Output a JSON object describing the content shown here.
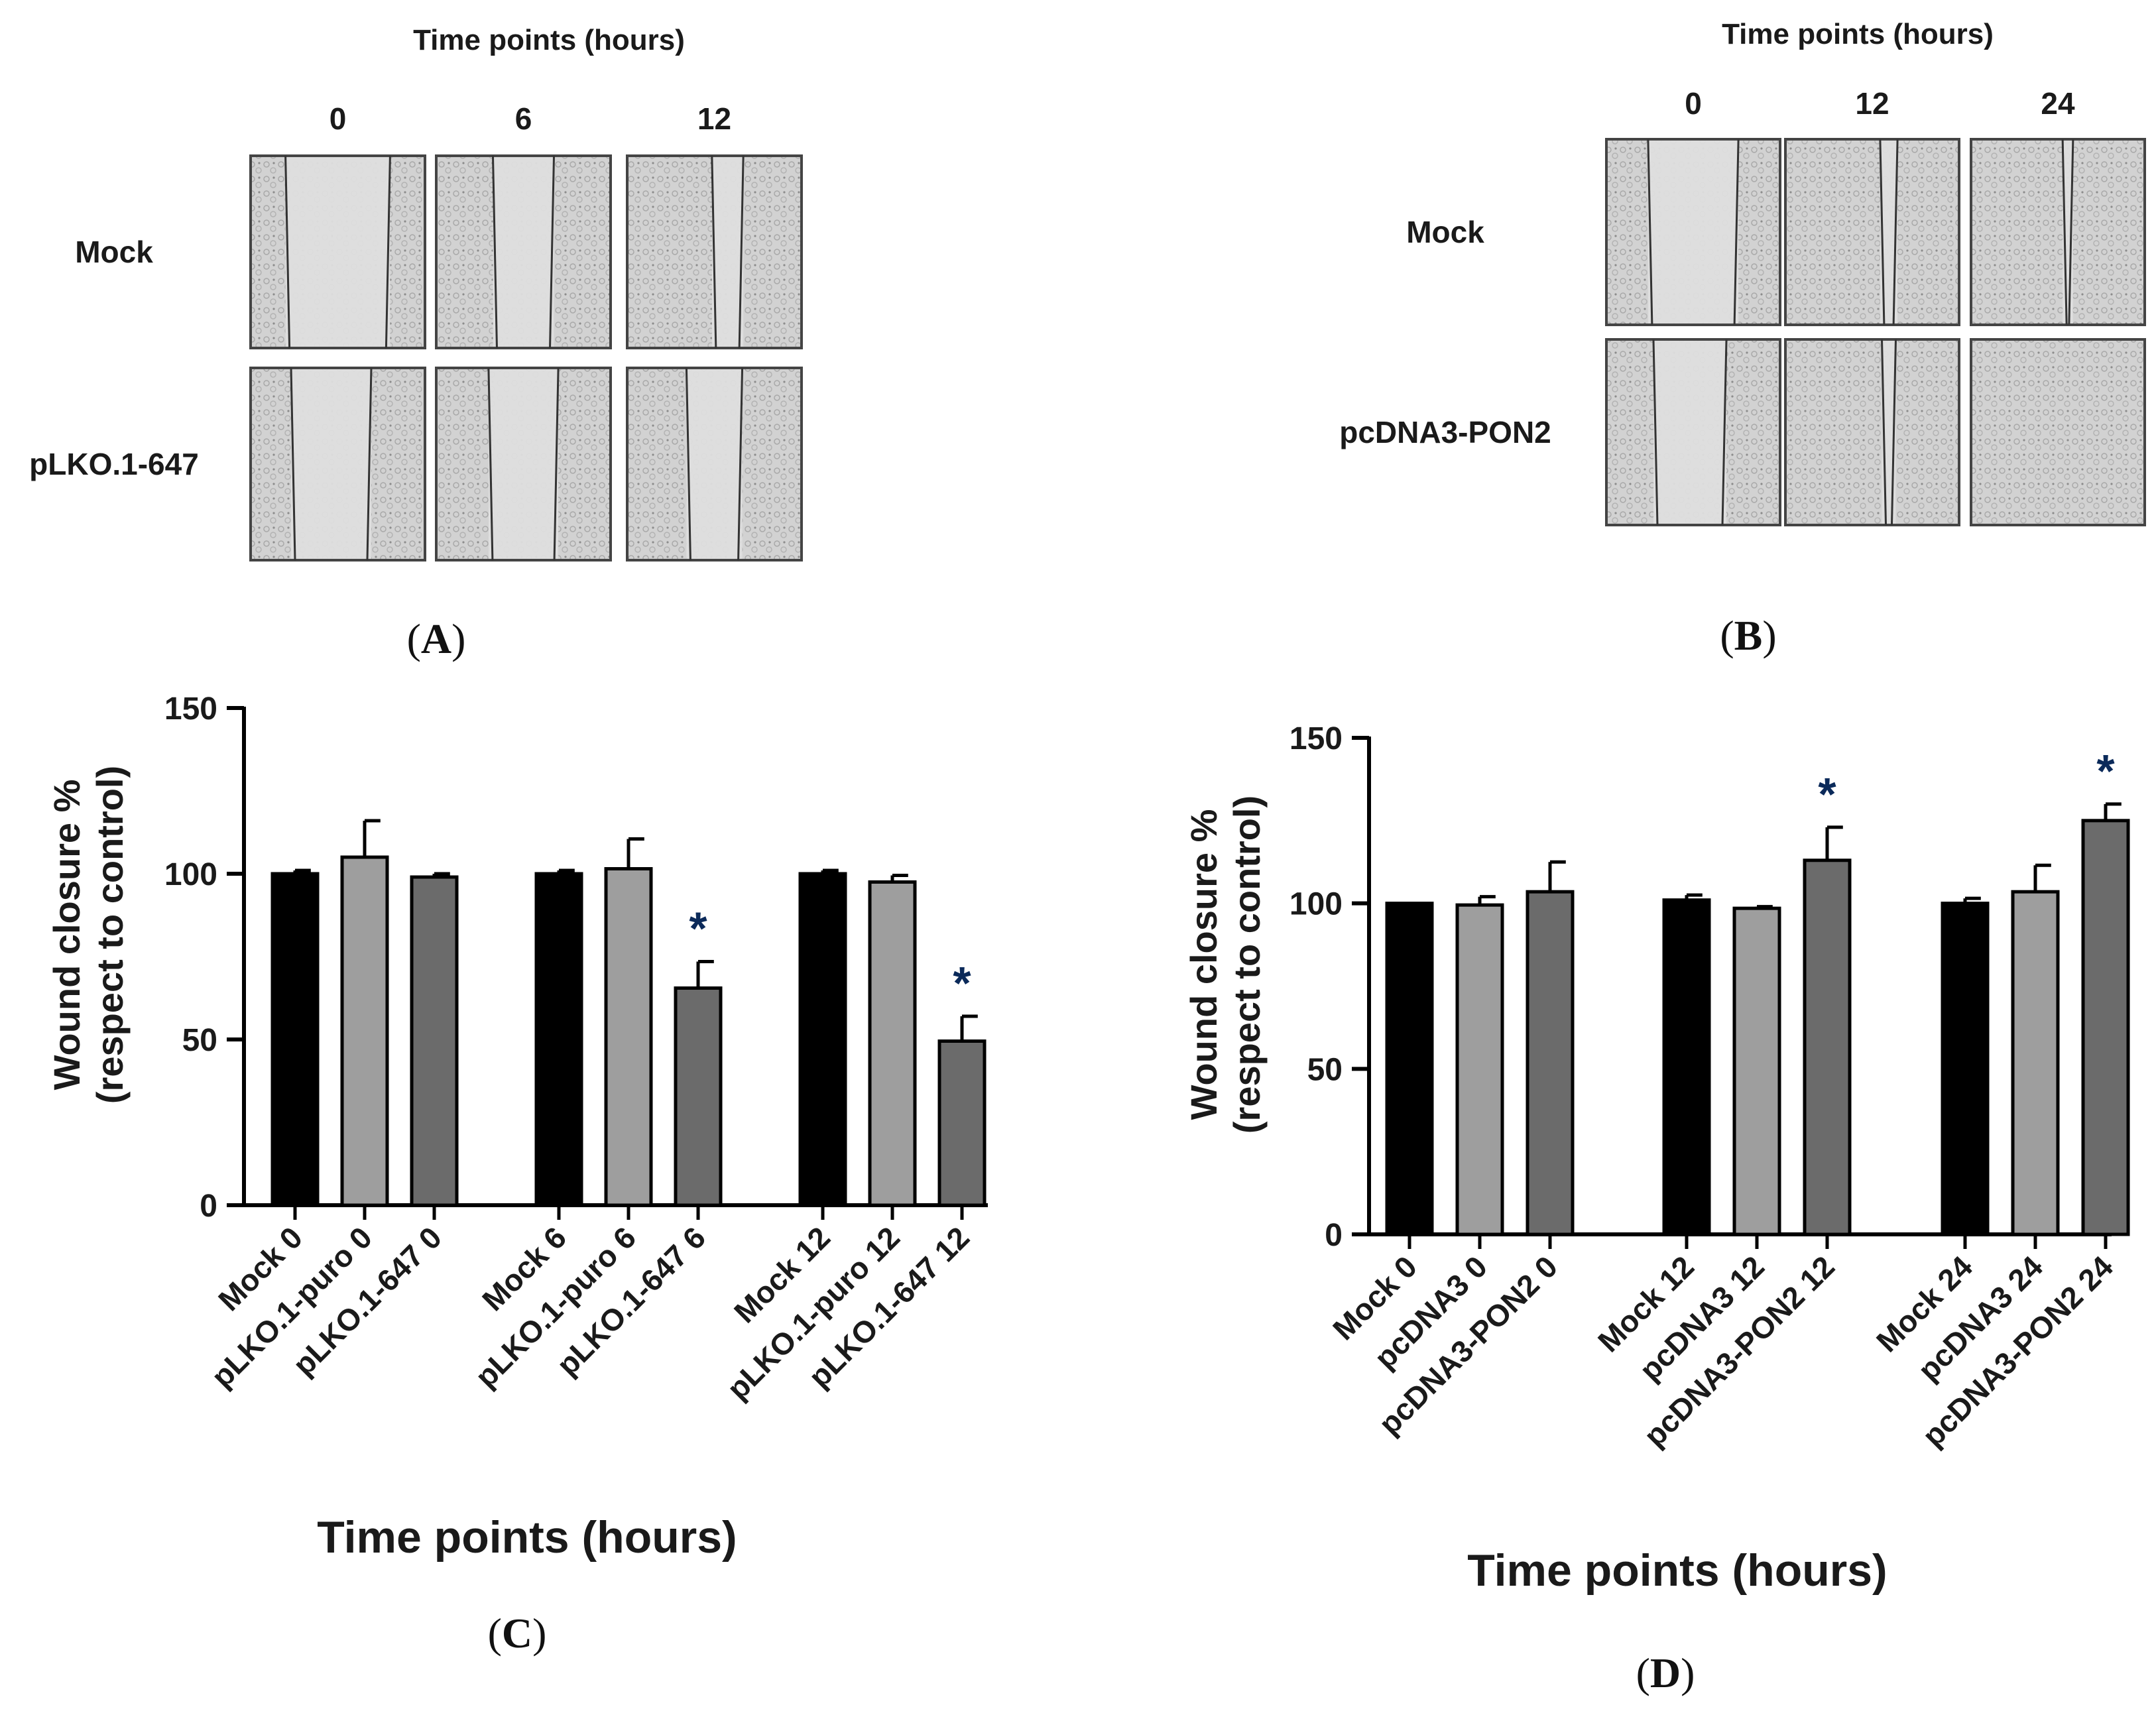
{
  "colors": {
    "mock": "#000000",
    "control": "#9e9e9e",
    "treated": "#6b6b6b",
    "asterisk": "#0b2a5a",
    "micrograph_bg": "#d3d3d3",
    "micrograph_gap": "#dedede"
  },
  "panel_a": {
    "label_open": "(",
    "letter": "A",
    "label_close": ")",
    "header": "Time points (hours)",
    "columns": [
      "0",
      "6",
      "12"
    ],
    "rows": [
      "Mock",
      "pLKO.1-647"
    ],
    "wound_width_fraction": [
      [
        0.6,
        0.35,
        0.18
      ],
      [
        0.46,
        0.4,
        0.32
      ]
    ]
  },
  "panel_b": {
    "label_open": "(",
    "letter": "B",
    "label_close": ")",
    "header": "Time points (hours)",
    "columns": [
      "0",
      "12",
      "24"
    ],
    "rows": [
      "Mock",
      "pcDNA3-PON2"
    ],
    "wound_width_fraction": [
      [
        0.52,
        0.1,
        0.06
      ],
      [
        0.42,
        0.08,
        0.0
      ]
    ]
  },
  "chart_data": [
    {
      "type": "bar",
      "panel": "C",
      "label_open": "(",
      "letter": "C",
      "label_close": ")",
      "xlabel": "Time points (hours)",
      "ylabel_line1": "Wound closure %",
      "ylabel_line2": "(respect to control)",
      "ylim": [
        0,
        150
      ],
      "yticks": [
        "0",
        "50",
        "100",
        "150"
      ],
      "groups": [
        [
          "Mock 0",
          "pLKO.1-puro 0",
          "pLKO.1-647 0"
        ],
        [
          "Mock 6",
          "pLKO.1-puro 6",
          "pLKO.1-647 6"
        ],
        [
          "Mock 12",
          "pLKO.1-puro 12",
          "pLKO.1-647 12"
        ]
      ],
      "values": [
        [
          100,
          105,
          99
        ],
        [
          100,
          101.5,
          65.5
        ],
        [
          100,
          97.5,
          49.5
        ]
      ],
      "errors": [
        [
          1,
          11,
          1
        ],
        [
          1,
          9,
          8
        ],
        [
          1,
          2,
          7.5
        ]
      ],
      "significance": [
        [
          "",
          "",
          ""
        ],
        [
          "",
          "",
          "*"
        ],
        [
          "",
          "",
          "*"
        ]
      ]
    },
    {
      "type": "bar",
      "panel": "D",
      "label_open": "(",
      "letter": "D",
      "label_close": ")",
      "xlabel": "Time points (hours)",
      "ylabel_line1": "Wound closure %",
      "ylabel_line2": "(respect to control)",
      "ylim": [
        0,
        150
      ],
      "yticks": [
        "0",
        "50",
        "100",
        "150"
      ],
      "groups": [
        [
          "Mock 0",
          "pcDNA3 0",
          "pcDNA3-PON2 0"
        ],
        [
          "Mock 12",
          "pcDNA3 12",
          "pcDNA3-PON2 12"
        ],
        [
          "Mock 24",
          "pcDNA3 24",
          "pcDNA3-PON2 24"
        ]
      ],
      "values": [
        [
          100,
          99.5,
          103.5
        ],
        [
          101,
          98.5,
          113
        ],
        [
          100,
          103.5,
          125
        ]
      ],
      "errors": [
        [
          0,
          2.5,
          9
        ],
        [
          1.5,
          0.5,
          10
        ],
        [
          1.5,
          8,
          5
        ]
      ],
      "significance": [
        [
          "",
          "",
          ""
        ],
        [
          "",
          "",
          "*"
        ],
        [
          "",
          "",
          "*"
        ]
      ]
    }
  ]
}
